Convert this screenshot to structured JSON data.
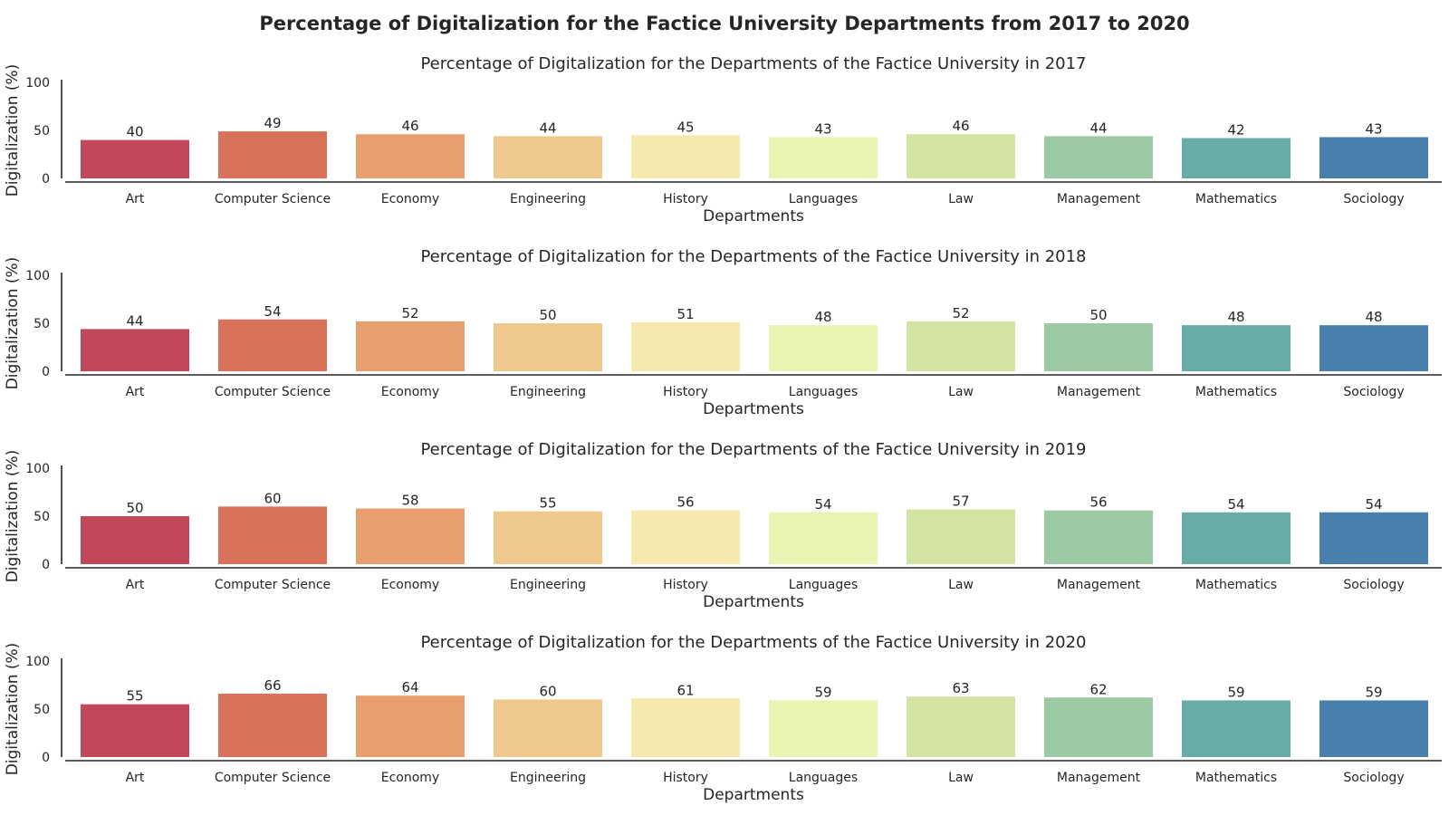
{
  "figure": {
    "title": "Percentage of Digitalization for the Factice University Departments from 2017 to 2020"
  },
  "chart_data": [
    {
      "type": "bar",
      "title": "Percentage of Digitalization for the Departments of the Factice University in 2017",
      "xlabel": "Departments",
      "ylabel": "Digitalization (%)",
      "ylim": [
        0,
        100
      ],
      "yticks": [
        "0",
        "50",
        "100"
      ],
      "categories": [
        "Art",
        "Computer Science",
        "Economy",
        "Engineering",
        "History",
        "Languages",
        "Law",
        "Management",
        "Mathematics",
        "Sociology"
      ],
      "values": [
        40,
        49,
        46,
        44,
        45,
        43,
        46,
        44,
        42,
        43
      ],
      "value_labels": [
        "40",
        "49",
        "46",
        "44",
        "45",
        "43",
        "46",
        "44",
        "42",
        "43"
      ],
      "colors": [
        "#c1485b",
        "#da715a",
        "#e89e6d",
        "#eec98b",
        "#f5e9ad",
        "#ebf3b3",
        "#d3e3a1",
        "#9ccaa5",
        "#68ada5",
        "#4880ab"
      ],
      "grid": false,
      "legend": "none"
    },
    {
      "type": "bar",
      "title": "Percentage of Digitalization for the Departments of the Factice University in 2018",
      "xlabel": "Departments",
      "ylabel": "Digitalization (%)",
      "ylim": [
        0,
        100
      ],
      "yticks": [
        "0",
        "50",
        "100"
      ],
      "categories": [
        "Art",
        "Computer Science",
        "Economy",
        "Engineering",
        "History",
        "Languages",
        "Law",
        "Management",
        "Mathematics",
        "Sociology"
      ],
      "values": [
        44,
        54,
        52,
        50,
        51,
        48,
        52,
        50,
        48,
        48
      ],
      "value_labels": [
        "44",
        "54",
        "52",
        "50",
        "51",
        "48",
        "52",
        "50",
        "48",
        "48"
      ],
      "colors": [
        "#c1485b",
        "#da715a",
        "#e89e6d",
        "#eec98b",
        "#f5e9ad",
        "#ebf3b3",
        "#d3e3a1",
        "#9ccaa5",
        "#68ada5",
        "#4880ab"
      ],
      "grid": false,
      "legend": "none"
    },
    {
      "type": "bar",
      "title": "Percentage of Digitalization for the Departments of the Factice University in 2019",
      "xlabel": "Departments",
      "ylabel": "Digitalization (%)",
      "ylim": [
        0,
        100
      ],
      "yticks": [
        "0",
        "50",
        "100"
      ],
      "categories": [
        "Art",
        "Computer Science",
        "Economy",
        "Engineering",
        "History",
        "Languages",
        "Law",
        "Management",
        "Mathematics",
        "Sociology"
      ],
      "values": [
        50,
        60,
        58,
        55,
        56,
        54,
        57,
        56,
        54,
        54
      ],
      "value_labels": [
        "50",
        "60",
        "58",
        "55",
        "56",
        "54",
        "57",
        "56",
        "54",
        "54"
      ],
      "colors": [
        "#c1485b",
        "#da715a",
        "#e89e6d",
        "#eec98b",
        "#f5e9ad",
        "#ebf3b3",
        "#d3e3a1",
        "#9ccaa5",
        "#68ada5",
        "#4880ab"
      ],
      "grid": false,
      "legend": "none"
    },
    {
      "type": "bar",
      "title": "Percentage of Digitalization for the Departments of the Factice University in 2020",
      "xlabel": "Departments",
      "ylabel": "Digitalization (%)",
      "ylim": [
        0,
        100
      ],
      "yticks": [
        "0",
        "50",
        "100"
      ],
      "categories": [
        "Art",
        "Computer Science",
        "Economy",
        "Engineering",
        "History",
        "Languages",
        "Law",
        "Management",
        "Mathematics",
        "Sociology"
      ],
      "values": [
        55,
        66,
        64,
        60,
        61,
        59,
        63,
        62,
        59,
        59
      ],
      "value_labels": [
        "55",
        "66",
        "64",
        "60",
        "61",
        "59",
        "63",
        "62",
        "59",
        "59"
      ],
      "colors": [
        "#c1485b",
        "#da715a",
        "#e89e6d",
        "#eec98b",
        "#f5e9ad",
        "#ebf3b3",
        "#d3e3a1",
        "#9ccaa5",
        "#68ada5",
        "#4880ab"
      ],
      "grid": false,
      "legend": "none"
    }
  ]
}
